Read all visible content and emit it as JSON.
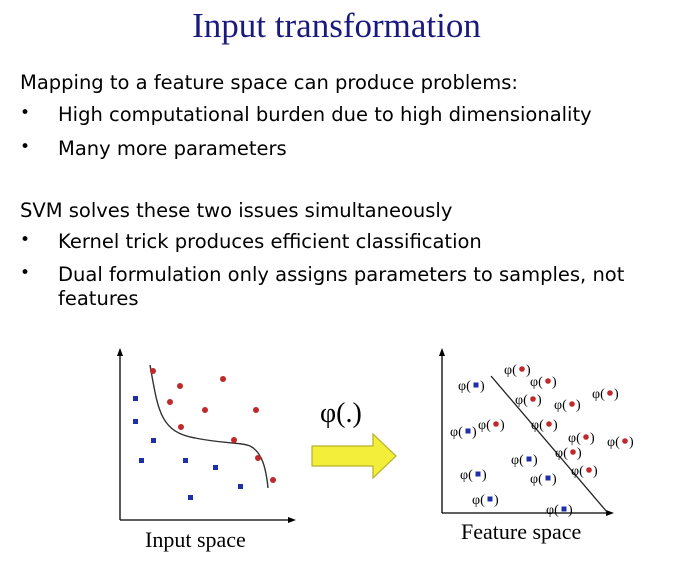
{
  "title": "Input transformation",
  "section1": {
    "intro": "Mapping to a feature space can produce problems:",
    "bullets": [
      "High computational burden due to high dimensionality",
      "Many more parameters"
    ]
  },
  "section2": {
    "intro": "SVM solves these two issues simultaneously",
    "bullets": [
      "Kernel trick produces efficient classification",
      "Dual formulation only assigns parameters to samples, not",
      "features"
    ]
  },
  "bullet_symbol": "•",
  "figure": {
    "input_caption": "Input space",
    "feature_caption": "Feature space",
    "mapping_label": "φ(.)",
    "phi_prefix": "φ(",
    "phi_suffix": ")",
    "colors": {
      "blue_class": "#1f2fa8",
      "red_class": "#c0282a",
      "arrow_fill": "#f2ee3a",
      "arrow_stroke": "#b8b02a",
      "title": "#1a1a7e"
    }
  }
}
